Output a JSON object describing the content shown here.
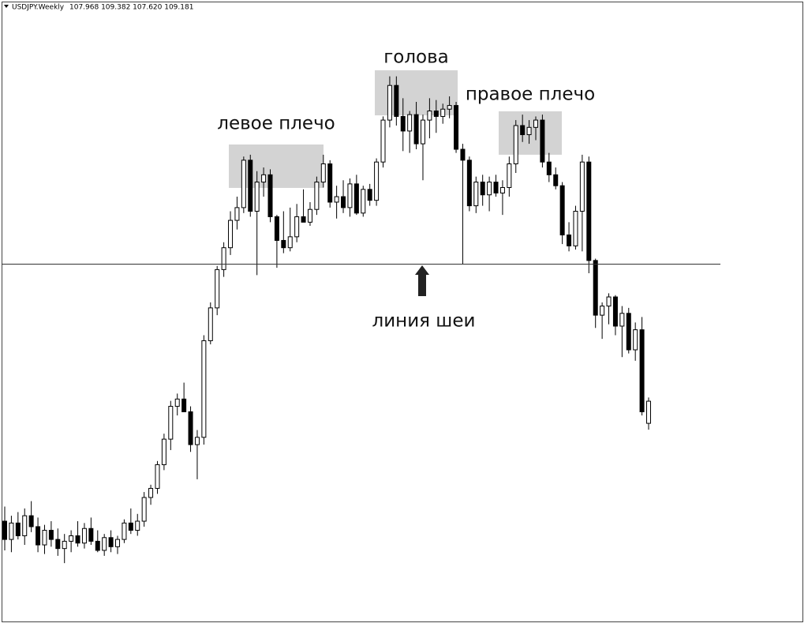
{
  "chart_data": {
    "type": "candlestick",
    "title": "USDJPY.Weekly",
    "header_values": "107.968 109.382 107.620 109.181",
    "ylim": [
      97.1,
      131.1
    ],
    "up_color": "#ffffff",
    "down_color": "#000000",
    "neckline": 116.7,
    "neckline_label": "линия шеи",
    "zones": [
      {
        "label": "левое плечо",
        "top": 123.26,
        "bottom": 120.88
      },
      {
        "label": "голова",
        "top": 127.33,
        "bottom": 124.86
      },
      {
        "label": "правое плечо",
        "top": 125.08,
        "bottom": 122.7
      }
    ],
    "open": [
      102.6,
      101.6,
      102.5,
      101.8,
      102.9,
      102.3,
      101.3,
      102.1,
      101.6,
      101.1,
      101.5,
      101.8,
      101.4,
      102.2,
      101.5,
      101.0,
      101.7,
      101.2,
      101.6,
      102.5,
      102.1,
      102.6,
      103.9,
      104.4,
      105.7,
      107.1,
      108.9,
      109.3,
      108.6,
      106.8,
      107.2,
      112.5,
      114.3,
      116.4,
      117.6,
      119.1,
      119.8,
      122.4,
      119.6,
      121.2,
      121.6,
      119.3,
      118.0,
      117.6,
      118.2,
      119.3,
      119.0,
      119.7,
      121.2,
      122.2,
      120.1,
      120.4,
      119.8,
      121.1,
      119.5,
      120.8,
      120.2,
      122.3,
      124.6,
      126.5,
      124.8,
      124.0,
      124.9,
      123.3,
      124.6,
      125.1,
      124.8,
      125.2,
      125.4,
      123.0,
      122.4,
      119.9,
      121.2,
      120.5,
      121.2,
      120.6,
      120.9,
      122.2,
      124.3,
      123.8,
      124.2,
      124.6,
      122.3,
      121.6,
      121.0,
      118.3,
      117.7,
      119.6,
      122.3,
      116.9,
      113.9,
      114.4,
      114.9,
      113.3,
      114.0,
      112.0,
      113.1,
      107.968
    ],
    "high": [
      103.4,
      102.9,
      103.1,
      103.3,
      103.7,
      102.8,
      102.4,
      102.6,
      102.2,
      101.9,
      102.1,
      102.6,
      102.5,
      102.8,
      102.1,
      101.9,
      102.1,
      101.8,
      102.7,
      103.3,
      103.0,
      104.2,
      104.6,
      105.9,
      107.4,
      109.2,
      109.6,
      110.2,
      108.9,
      107.6,
      112.8,
      114.6,
      116.6,
      117.9,
      119.6,
      120.4,
      122.6,
      122.7,
      121.8,
      122.0,
      121.9,
      119.4,
      119.6,
      119.8,
      120.0,
      120.8,
      120.1,
      121.5,
      122.7,
      122.4,
      121.0,
      121.3,
      121.4,
      121.6,
      121.0,
      121.1,
      122.5,
      124.8,
      127.0,
      127.0,
      125.8,
      125.1,
      125.6,
      124.9,
      125.8,
      125.7,
      125.5,
      125.9,
      125.6,
      123.3,
      122.6,
      121.5,
      121.6,
      121.5,
      121.6,
      121.3,
      122.6,
      124.6,
      124.9,
      124.6,
      124.8,
      124.9,
      122.8,
      122.0,
      121.2,
      119.0,
      119.9,
      122.7,
      122.6,
      117.0,
      114.6,
      115.1,
      115.0,
      114.4,
      114.3,
      113.5,
      113.8,
      109.382
    ],
    "low": [
      101.0,
      100.9,
      101.6,
      101.3,
      102.0,
      100.9,
      100.8,
      101.2,
      100.7,
      100.3,
      100.9,
      101.2,
      101.1,
      101.3,
      100.9,
      100.7,
      100.9,
      100.8,
      101.4,
      101.9,
      101.8,
      102.3,
      103.5,
      104.1,
      105.4,
      106.5,
      108.4,
      108.8,
      106.4,
      104.9,
      106.8,
      112.3,
      113.9,
      116.0,
      117.2,
      118.6,
      119.5,
      119.3,
      116.1,
      120.4,
      119.0,
      116.5,
      117.3,
      117.4,
      117.9,
      119.0,
      118.8,
      119.4,
      120.9,
      119.8,
      119.2,
      119.5,
      119.3,
      119.4,
      119.3,
      119.9,
      119.9,
      122.0,
      124.2,
      124.3,
      122.9,
      122.8,
      123.0,
      121.3,
      123.6,
      123.9,
      124.4,
      124.7,
      122.8,
      116.7,
      119.6,
      119.5,
      119.9,
      119.6,
      120.4,
      119.4,
      120.4,
      121.7,
      123.4,
      123.3,
      123.5,
      122.0,
      121.2,
      120.8,
      117.8,
      117.4,
      117.5,
      117.4,
      116.2,
      113.2,
      112.6,
      113.4,
      112.8,
      111.6,
      111.8,
      111.4,
      108.4,
      107.62
    ],
    "close": [
      101.6,
      102.5,
      101.8,
      102.9,
      102.3,
      101.3,
      102.1,
      101.6,
      101.1,
      101.5,
      101.8,
      101.4,
      102.2,
      101.5,
      101.0,
      101.7,
      101.2,
      101.6,
      102.5,
      102.1,
      102.6,
      103.9,
      104.4,
      105.7,
      107.1,
      108.9,
      109.3,
      108.6,
      106.8,
      107.2,
      112.5,
      114.3,
      116.4,
      117.6,
      119.1,
      119.8,
      122.4,
      119.6,
      121.2,
      121.6,
      119.3,
      118.0,
      117.6,
      118.2,
      119.3,
      119.0,
      119.7,
      121.2,
      122.2,
      120.1,
      120.4,
      119.8,
      121.1,
      119.5,
      120.8,
      120.2,
      122.3,
      124.6,
      126.5,
      124.8,
      124.0,
      124.9,
      123.3,
      124.6,
      125.1,
      124.8,
      125.2,
      125.4,
      123.0,
      122.4,
      119.9,
      121.2,
      120.5,
      121.2,
      120.6,
      120.9,
      122.2,
      124.3,
      123.8,
      124.2,
      124.6,
      122.3,
      121.6,
      121.0,
      118.3,
      117.7,
      119.6,
      122.3,
      116.9,
      113.9,
      114.4,
      114.9,
      113.3,
      114.0,
      112.0,
      113.1,
      108.6,
      109.181
    ]
  }
}
